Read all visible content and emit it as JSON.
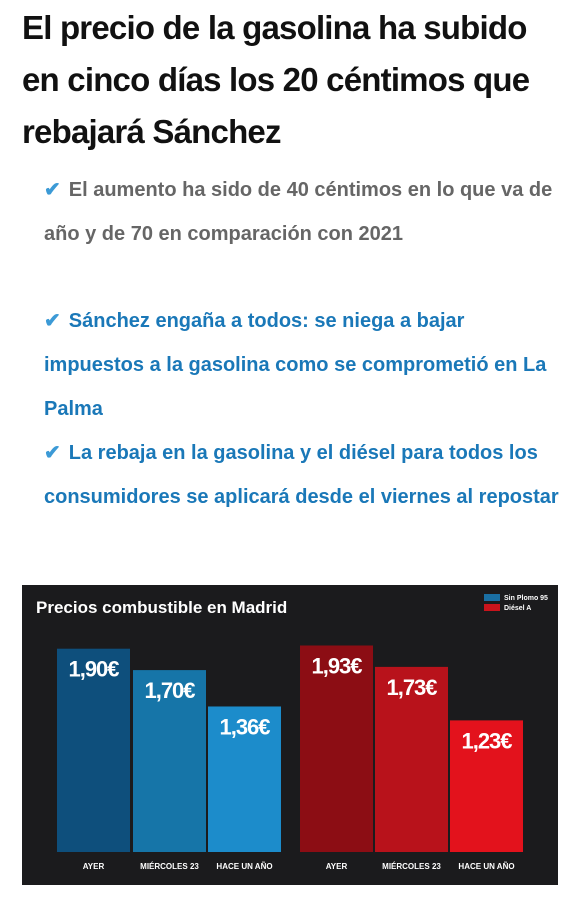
{
  "headline": "El precio de la gasolina ha subido en cinco días los 20 céntimos que rebajará Sánchez",
  "bullets": [
    "El aumento ha sido de 40 céntimos en lo que va de año y de 70 en comparación con 2021",
    "Sánchez engaña a todos: se niega a bajar impuestos a la gasolina como se comprometió en La Palma",
    "La rebaja en la gasolina y el diésel para todos los consumidores se aplicará desde el viernes al repostar"
  ],
  "chart_data": {
    "type": "bar",
    "title": "Precios combustible en Madrid",
    "categories": [
      "AYER",
      "MIÉRCOLES 23",
      "HACE UN AÑO"
    ],
    "series": [
      {
        "name": "Sin Plomo 95",
        "color": "#1a6fa3",
        "colors": [
          "#0e4f7c",
          "#1675a8",
          "#1c8ccb"
        ],
        "values": [
          1.9,
          1.7,
          1.36
        ],
        "value_labels": [
          "1,90€",
          "1,70€",
          "1,36€"
        ]
      },
      {
        "name": "Diésel A",
        "color": "#c8141c",
        "colors": [
          "#8c0d14",
          "#b8121b",
          "#e3121c"
        ],
        "values": [
          1.93,
          1.73,
          1.23
        ],
        "value_labels": [
          "1,93€",
          "1,73€",
          "1,23€"
        ]
      }
    ]
  }
}
